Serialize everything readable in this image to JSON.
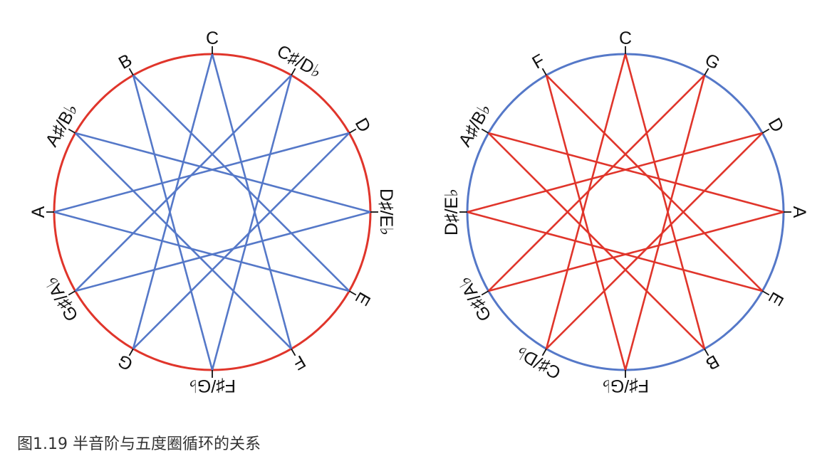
{
  "caption": "图1.19 半音阶与五度圈循环的关系",
  "colors": {
    "red": "#e0352b",
    "blue": "#5578c8",
    "text": "#111111"
  },
  "diagrams": [
    {
      "id": "chromatic",
      "circle_color": "#e0352b",
      "line_color": "#5578c8",
      "notes": [
        "C",
        "C♯/D♭",
        "D",
        "D♯/E♭",
        "E",
        "F",
        "F♯/G♭",
        "G",
        "G♯/A♭",
        "A",
        "A♯/B♭",
        "B"
      ],
      "connection_step": 5
    },
    {
      "id": "fifths",
      "circle_color": "#5578c8",
      "line_color": "#e0352b",
      "notes": [
        "C",
        "G",
        "D",
        "A",
        "E",
        "B",
        "F♯/G♭",
        "C♯/D♭",
        "G♯/A♭",
        "D♯/E♭",
        "A♯/B♭",
        "F"
      ],
      "connection_step": 5
    }
  ]
}
